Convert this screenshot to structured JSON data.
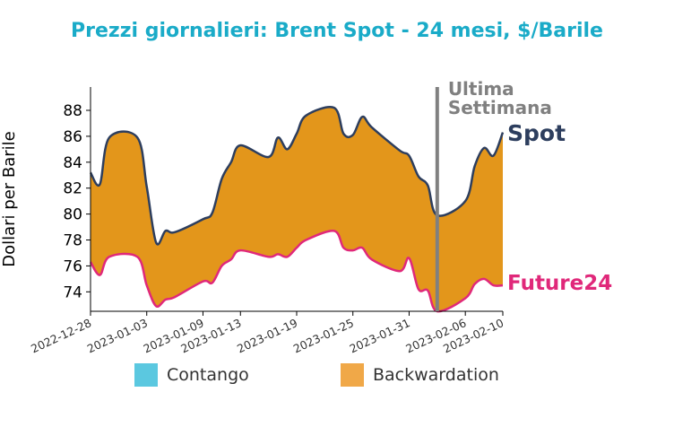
{
  "chart_data": {
    "type": "area",
    "title": "Prezzi giornalieri: Brent Spot - 24 mesi, $/Barile",
    "xlabel": "",
    "ylabel": "Dollari per Barile",
    "xlim": [
      "2022-12-28",
      "2023-02-10"
    ],
    "ylim": [
      72.5,
      89.8
    ],
    "x_ticks": [
      "2022-12-28",
      "2023-01-03",
      "2023-01-09",
      "2023-01-13",
      "2023-01-19",
      "2023-01-25",
      "2023-01-31",
      "2023-02-06",
      "2023-02-10"
    ],
    "y_ticks": [
      74,
      76,
      78,
      80,
      82,
      84,
      86,
      88
    ],
    "grid": false,
    "series": [
      {
        "name": "Spot",
        "color": "#2d3e5e",
        "points": [
          [
            "2022-12-28",
            83.2
          ],
          [
            "2022-12-29",
            82.3
          ],
          [
            "2022-12-30",
            85.9
          ],
          [
            "2023-01-02",
            85.9
          ],
          [
            "2023-01-03",
            82.1
          ],
          [
            "2023-01-04",
            77.8
          ],
          [
            "2023-01-05",
            78.7
          ],
          [
            "2023-01-06",
            78.6
          ],
          [
            "2023-01-09",
            79.6
          ],
          [
            "2023-01-10",
            80.1
          ],
          [
            "2023-01-11",
            82.7
          ],
          [
            "2023-01-12",
            84.0
          ],
          [
            "2023-01-13",
            85.3
          ],
          [
            "2023-01-16",
            84.4
          ],
          [
            "2023-01-17",
            85.9
          ],
          [
            "2023-01-18",
            85.0
          ],
          [
            "2023-01-19",
            86.2
          ],
          [
            "2023-01-20",
            87.6
          ],
          [
            "2023-01-23",
            88.2
          ],
          [
            "2023-01-24",
            86.2
          ],
          [
            "2023-01-25",
            86.1
          ],
          [
            "2023-01-26",
            87.5
          ],
          [
            "2023-01-27",
            86.7
          ],
          [
            "2023-01-30",
            84.9
          ],
          [
            "2023-01-31",
            84.5
          ],
          [
            "2023-02-01",
            82.9
          ],
          [
            "2023-02-02",
            82.2
          ],
          [
            "2023-02-03",
            79.9
          ],
          [
            "2023-02-06",
            81.0
          ],
          [
            "2023-02-07",
            83.7
          ],
          [
            "2023-02-08",
            85.1
          ],
          [
            "2023-02-09",
            84.5
          ],
          [
            "2023-02-10",
            86.3
          ]
        ]
      },
      {
        "name": "Future24",
        "color": "#e0287a",
        "points": [
          [
            "2022-12-28",
            76.3
          ],
          [
            "2022-12-29",
            75.3
          ],
          [
            "2022-12-30",
            76.7
          ],
          [
            "2023-01-02",
            76.7
          ],
          [
            "2023-01-03",
            74.5
          ],
          [
            "2023-01-04",
            72.9
          ],
          [
            "2023-01-05",
            73.4
          ],
          [
            "2023-01-06",
            73.6
          ],
          [
            "2023-01-09",
            74.8
          ],
          [
            "2023-01-10",
            74.7
          ],
          [
            "2023-01-11",
            76.0
          ],
          [
            "2023-01-12",
            76.5
          ],
          [
            "2023-01-13",
            77.2
          ],
          [
            "2023-01-16",
            76.7
          ],
          [
            "2023-01-17",
            76.9
          ],
          [
            "2023-01-18",
            76.7
          ],
          [
            "2023-01-19",
            77.4
          ],
          [
            "2023-01-20",
            78.0
          ],
          [
            "2023-01-23",
            78.7
          ],
          [
            "2023-01-24",
            77.4
          ],
          [
            "2023-01-25",
            77.2
          ],
          [
            "2023-01-26",
            77.4
          ],
          [
            "2023-01-27",
            76.5
          ],
          [
            "2023-01-30",
            75.6
          ],
          [
            "2023-01-31",
            76.6
          ],
          [
            "2023-02-01",
            74.2
          ],
          [
            "2023-02-02",
            74.1
          ],
          [
            "2023-02-03",
            72.5
          ],
          [
            "2023-02-06",
            73.5
          ],
          [
            "2023-02-07",
            74.6
          ],
          [
            "2023-02-08",
            75.0
          ],
          [
            "2023-02-09",
            74.5
          ],
          [
            "2023-02-10",
            74.5
          ]
        ]
      }
    ],
    "fill_colors": {
      "contango": "#5bc8e0",
      "backwardation": "#e3961b"
    },
    "marker": {
      "date": "2023-02-03",
      "label_lines": [
        "Ultima",
        "Settimana"
      ],
      "color": "#808080"
    },
    "legend": [
      {
        "label": "Contango",
        "color": "#5bc8e0"
      },
      {
        "label": "Backwardation",
        "color": "#f0a848"
      }
    ],
    "legend_placement": "bottom"
  }
}
